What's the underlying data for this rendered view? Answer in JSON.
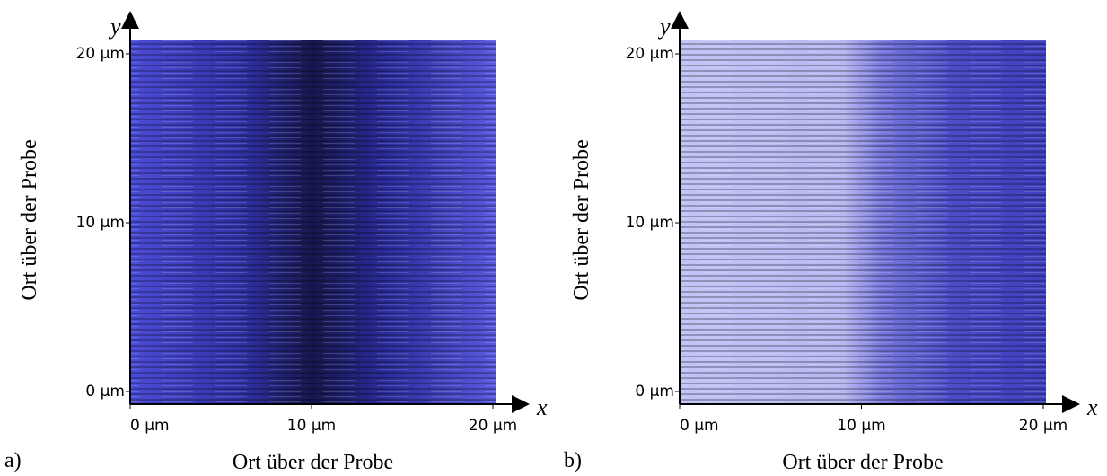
{
  "chart_data": [
    {
      "type": "image",
      "panel_label": "a)",
      "x_label": "Ort über der Probe",
      "y_label": "Ort über der Probe",
      "x_symbol": "x",
      "y_symbol": "y",
      "xlim": [
        0,
        20
      ],
      "ylim": [
        0,
        20
      ],
      "xticks": [
        {
          "value": 0,
          "label": "0 µm"
        },
        {
          "value": 10,
          "label": "10 µm"
        },
        {
          "value": 20,
          "label": "20 µm"
        }
      ],
      "yticks": [
        {
          "value": 0,
          "label": "0 µm"
        },
        {
          "value": 10,
          "label": "10 µm"
        },
        {
          "value": 20,
          "label": "20 µm"
        }
      ]
    },
    {
      "type": "image",
      "panel_label": "b)",
      "x_label": "Ort über der Probe",
      "y_label": "Ort über der Probe",
      "x_symbol": "x",
      "y_symbol": "y",
      "xlim": [
        0,
        20
      ],
      "ylim": [
        0,
        20
      ],
      "xticks": [
        {
          "value": 0,
          "label": "0 µm"
        },
        {
          "value": 10,
          "label": "10 µm"
        },
        {
          "value": 20,
          "label": "20 µm"
        }
      ],
      "yticks": [
        {
          "value": 0,
          "label": "0 µm"
        },
        {
          "value": 10,
          "label": "10 µm"
        },
        {
          "value": 20,
          "label": "20 µm"
        }
      ]
    }
  ]
}
